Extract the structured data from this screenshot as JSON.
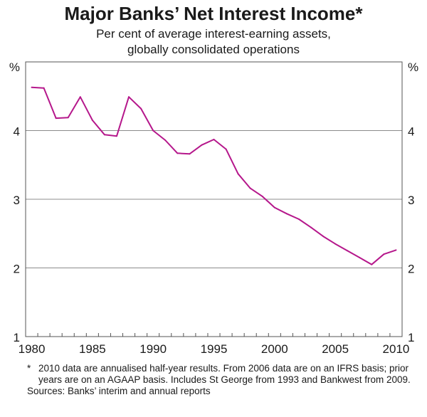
{
  "chart_data": {
    "type": "line",
    "title": "Major Banks’ Net Interest Income*",
    "subtitle": [
      "Per cent of average interest-earning assets,",
      "globally consolidated operations"
    ],
    "ylabel_left": "%",
    "ylabel_right": "%",
    "ylim": [
      1,
      5
    ],
    "yticks": [
      1,
      2,
      3,
      4
    ],
    "xlim": [
      1979.5,
      2010.5
    ],
    "xticks": [
      1980,
      1985,
      1990,
      1995,
      2000,
      2005,
      2010
    ],
    "grid": true,
    "line_color": "#b5178b",
    "x": [
      1980,
      1981,
      1982,
      1983,
      1984,
      1985,
      1986,
      1987,
      1988,
      1989,
      1990,
      1991,
      1992,
      1993,
      1994,
      1995,
      1996,
      1997,
      1998,
      1999,
      2000,
      2001,
      2002,
      2003,
      2004,
      2005,
      2006,
      2007,
      2008,
      2009,
      2010
    ],
    "series": [
      {
        "values": [
          4.63,
          4.62,
          4.18,
          4.19,
          4.49,
          4.15,
          3.94,
          3.92,
          4.49,
          4.32,
          4.0,
          3.86,
          3.67,
          3.66,
          3.79,
          3.87,
          3.73,
          3.37,
          3.16,
          3.04,
          2.88,
          2.79,
          2.71,
          2.59,
          2.46,
          2.35,
          2.25,
          2.15,
          2.05,
          2.2,
          2.26
        ]
      }
    ],
    "footnote": "2010 data are annualised half-year results. From 2006 data are on an IFRS basis; prior years are on an AGAAP basis. Includes St George from 1993 and Bankwest from 2009.",
    "footnote_marker": "*",
    "sources": "Sources: Banks’ interim and annual reports"
  }
}
